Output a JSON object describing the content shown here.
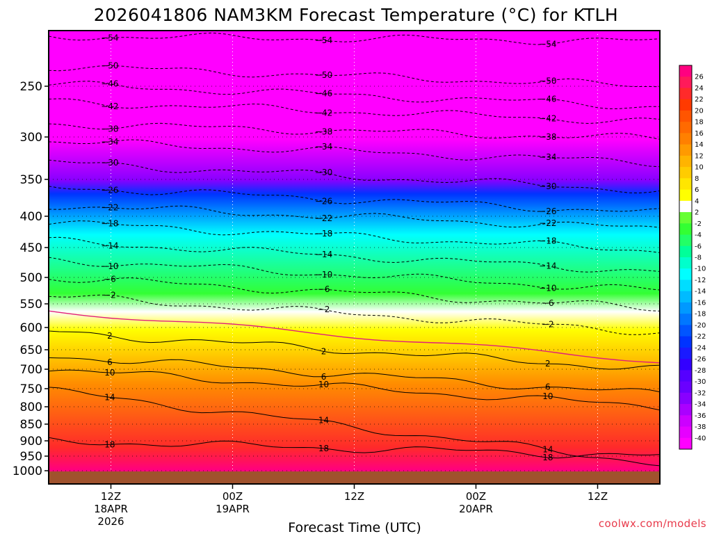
{
  "chart_data": {
    "type": "heatmap",
    "title": "2026041806 NAM3KM Forecast Temperature (°C) for KTLH",
    "xlabel": "Forecast Time (UTC)",
    "ylabel": "",
    "credit": "coolwx.com/models",
    "x_range_hours": [
      0,
      60
    ],
    "y_levels_hpa": [
      250,
      300,
      350,
      400,
      450,
      500,
      550,
      600,
      650,
      700,
      750,
      800,
      850,
      900,
      950,
      1000
    ],
    "y_tick_labels": [
      "250",
      "300",
      "350",
      "400",
      "450",
      "500",
      "550",
      "600",
      "650",
      "700",
      "750",
      "800",
      "850",
      "900",
      "950",
      "1000"
    ],
    "x_ticks": [
      {
        "hour": 6,
        "label": "12Z",
        "date": "18APR",
        "year": "2026"
      },
      {
        "hour": 18,
        "label": "00Z",
        "date": "19APR",
        "year": ""
      },
      {
        "hour": 30,
        "label": "12Z",
        "date": "",
        "year": ""
      },
      {
        "hour": 42,
        "label": "00Z",
        "date": "20APR",
        "year": ""
      },
      {
        "hour": 54,
        "label": "12Z",
        "date": "",
        "year": ""
      }
    ],
    "colorbar_labels": [
      "26",
      "24",
      "22",
      "20",
      "18",
      "16",
      "14",
      "12",
      "10",
      "8",
      "6",
      "4",
      "2",
      "-2",
      "-4",
      "-6",
      "-8",
      "-10",
      "-12",
      "-14",
      "-16",
      "-18",
      "-20",
      "-22",
      "-24",
      "-26",
      "-28",
      "-30",
      "-32",
      "-34",
      "-36",
      "-38",
      "-40"
    ],
    "colors": {
      "c_hot": "#ff0080",
      "c_warm": "#ff2a2a",
      "c_orange": "#ff8c00",
      "c_yellow": "#ffff00",
      "c_white": "#ffffff",
      "c_green": "#33ff33",
      "c_cyan": "#00ffff",
      "c_blue": "#0033ff",
      "c_purple": "#8800ff",
      "c_magenta": "#ff00ff",
      "ground": "#a0522d",
      "zero_line": "#e0207a"
    },
    "isotherms": [
      {
        "value": -54,
        "label": "54",
        "p_start": 200,
        "p_end": 205
      },
      {
        "value": -50,
        "label": "50",
        "p_start": 230,
        "p_end": 250
      },
      {
        "value": -46,
        "label": "46",
        "p_start": 248,
        "p_end": 270
      },
      {
        "value": -42,
        "label": "42",
        "p_start": 265,
        "p_end": 285
      },
      {
        "value": -38,
        "label": "38",
        "p_start": 287,
        "p_end": 302
      },
      {
        "value": -34,
        "label": "34",
        "p_start": 305,
        "p_end": 330
      },
      {
        "value": -30,
        "label": "30",
        "p_start": 330,
        "p_end": 365
      },
      {
        "value": -26,
        "label": "26",
        "p_start": 360,
        "p_end": 395
      },
      {
        "value": -22,
        "label": "22",
        "p_start": 385,
        "p_end": 420
      },
      {
        "value": -18,
        "label": "18",
        "p_start": 410,
        "p_end": 455
      },
      {
        "value": -14,
        "label": "14",
        "p_start": 440,
        "p_end": 490
      },
      {
        "value": -10,
        "label": "10",
        "p_start": 470,
        "p_end": 525
      },
      {
        "value": -6,
        "label": "6",
        "p_start": 500,
        "p_end": 560
      },
      {
        "value": -2,
        "label": "2",
        "p_start": 535,
        "p_end": 610
      },
      {
        "value": 2,
        "label": "2",
        "p_start": 610,
        "p_end": 700
      },
      {
        "value": 6,
        "label": "6",
        "p_start": 665,
        "p_end": 765
      },
      {
        "value": 10,
        "label": "10",
        "p_start": 700,
        "p_end": 800
      },
      {
        "value": 14,
        "label": "14",
        "p_start": 755,
        "p_end": 975
      },
      {
        "value": 18,
        "label": "18",
        "p_start": 900,
        "p_end": 950
      }
    ]
  }
}
